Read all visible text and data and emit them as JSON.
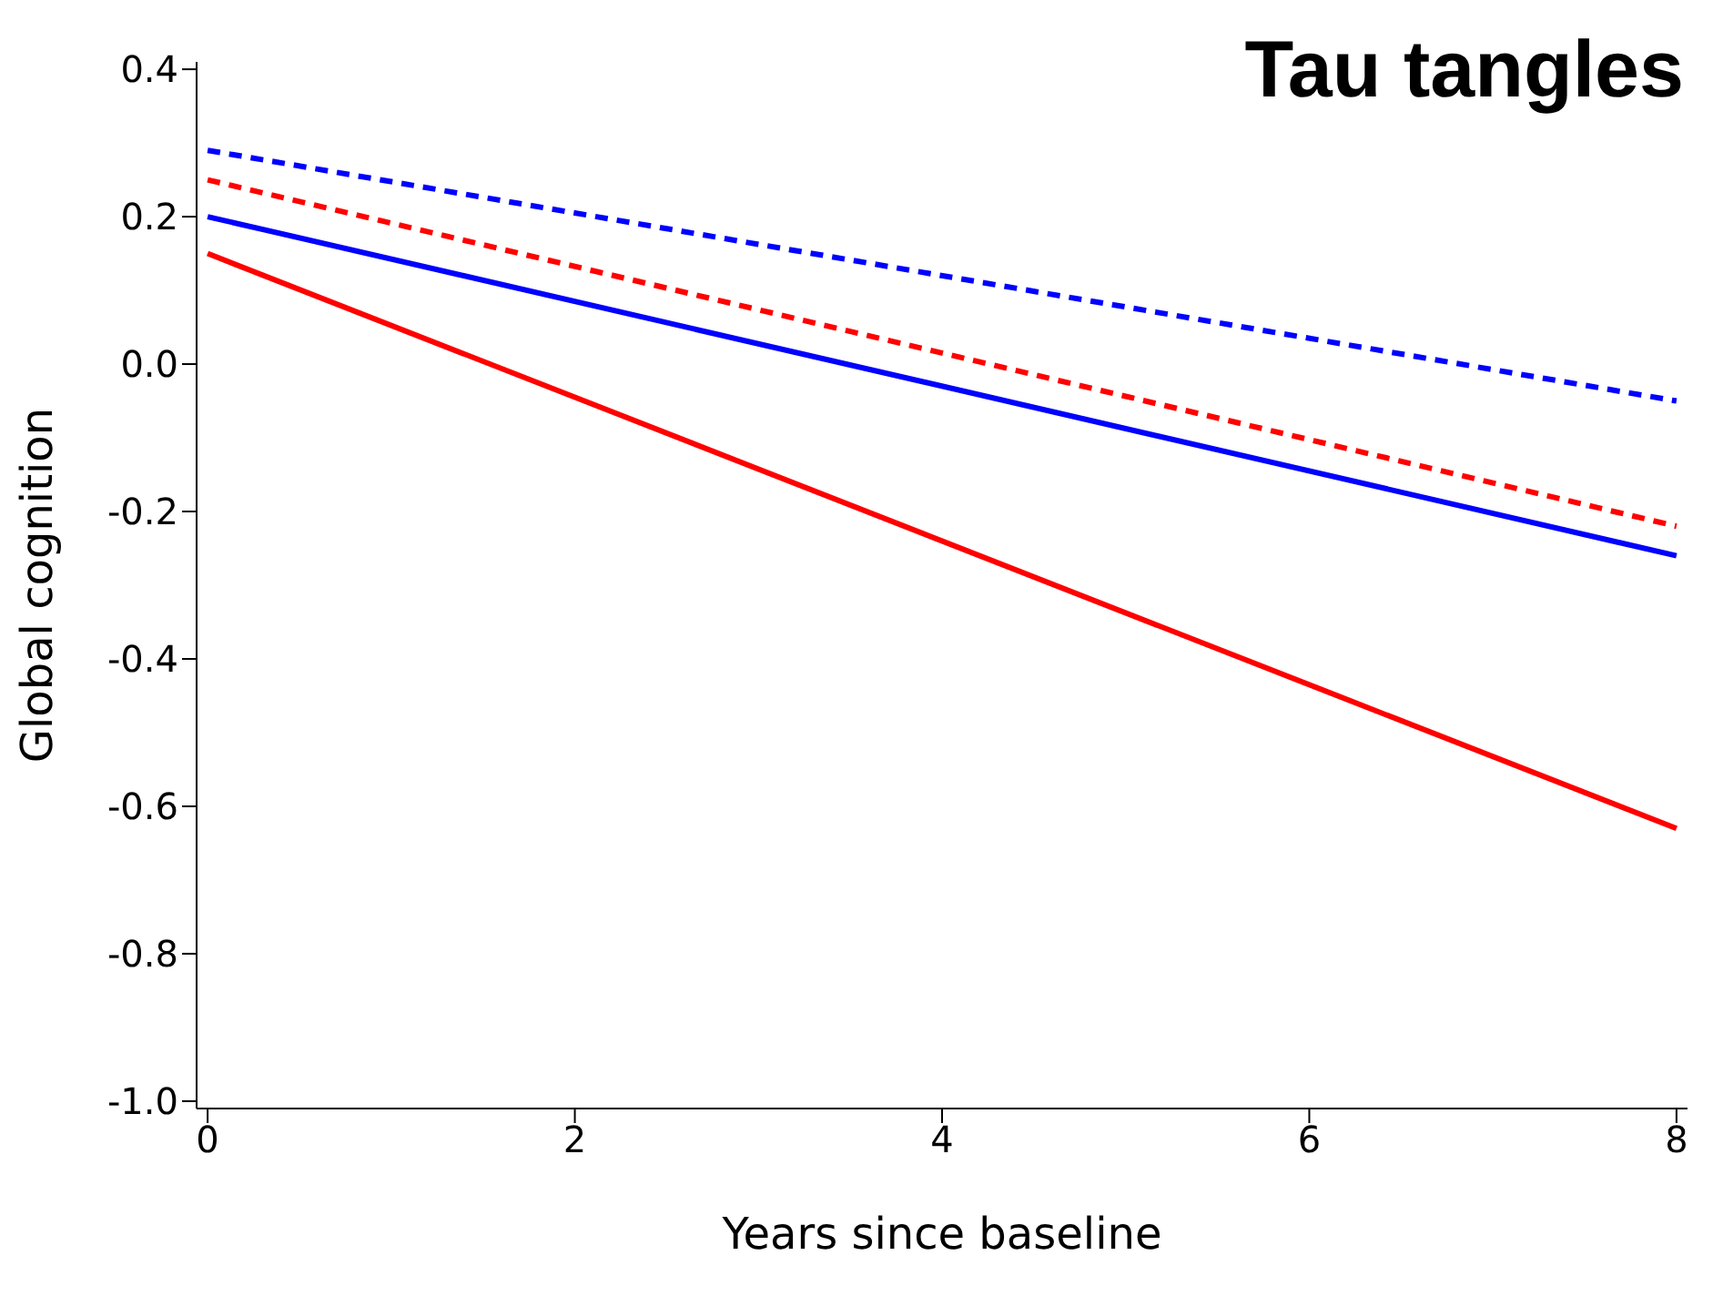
{
  "chart_data": {
    "type": "line",
    "title": "Tau tangles",
    "xlabel": "Years since baseline",
    "ylabel": "Global cognition",
    "xlim": [
      -0.06,
      8.06
    ],
    "xticks": [
      0,
      2,
      4,
      6,
      8
    ],
    "ylim": [
      -1.01,
      0.41
    ],
    "yticks": [
      {
        "value": 0.4,
        "label": "0.4"
      },
      {
        "value": 0.2,
        "label": "0.2"
      },
      {
        "value": 0,
        "label": "0.0"
      },
      {
        "value": -0.2,
        "label": "-0.2"
      },
      {
        "value": -0.4,
        "label": "-0.4"
      },
      {
        "value": -0.6,
        "label": "-0.6"
      },
      {
        "value": -0.8,
        "label": "-0.8"
      },
      {
        "value": -1,
        "label": "-1.0"
      }
    ],
    "grid": false,
    "legend": false,
    "marker": "none",
    "x": [
      0,
      8
    ],
    "series": [
      {
        "color": "#0000ff",
        "line_style": "dashed",
        "values": [
          0.29,
          -0.05
        ]
      },
      {
        "color": "#ff0000",
        "line_style": "dashed",
        "values": [
          0.25,
          -0.22
        ]
      },
      {
        "color": "#0000ff",
        "line_style": "solid",
        "values": [
          0.2,
          -0.26
        ]
      },
      {
        "color": "#ff0000",
        "line_style": "solid",
        "values": [
          0.15,
          -0.63
        ]
      }
    ]
  }
}
